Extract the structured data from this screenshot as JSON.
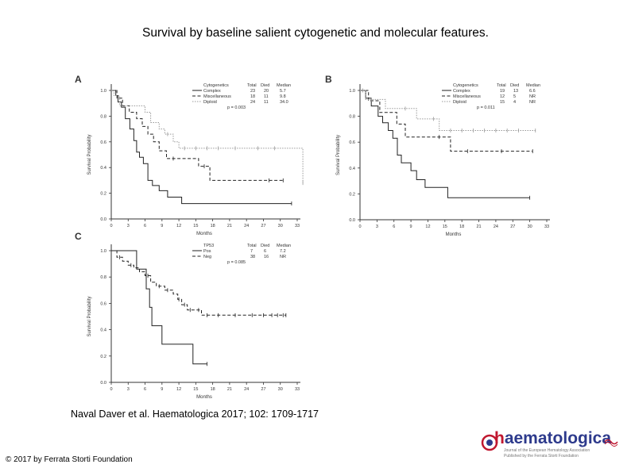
{
  "title": "Survival by baseline salient cytogenetic and molecular features.",
  "citation": "Naval Daver et al. Haematologica 2017; 102: 1709-1717",
  "copyright": "© 2017 by Ferrata Storti Foundation",
  "logo": {
    "text_h": "h",
    "text_rest": "aematologica",
    "line1": "Journal of the European Hematology Association",
    "line2": "Published by the Ferrata Storti Foundation"
  },
  "chart_data": [
    {
      "panel": "A",
      "type": "line",
      "step": true,
      "xlabel": "Months",
      "ylabel": "Survival Probability",
      "xlim": [
        0,
        33
      ],
      "ylim": [
        0,
        1
      ],
      "x_ticks": [
        0,
        3,
        6,
        9,
        12,
        15,
        18,
        21,
        24,
        27,
        30,
        33
      ],
      "y_ticks": [
        "0.0",
        "0.2",
        "0.4",
        "0.6",
        "0.8",
        "1.0"
      ],
      "legend_header": [
        "Cytogenetics",
        "Total",
        "Died",
        "Median"
      ],
      "p_value": "p = 0.003",
      "series": [
        {
          "name": "Complex",
          "total": "23",
          "died": "20",
          "median": "5.7",
          "style": "solid",
          "color": "#222222",
          "points": [
            [
              0,
              1
            ],
            [
              0.8,
              0.96
            ],
            [
              1.2,
              0.91
            ],
            [
              1.8,
              0.87
            ],
            [
              2.5,
              0.78
            ],
            [
              3.3,
              0.7
            ],
            [
              4,
              0.61
            ],
            [
              4.5,
              0.52
            ],
            [
              5,
              0.48
            ],
            [
              5.7,
              0.43
            ],
            [
              6.5,
              0.3
            ],
            [
              7.3,
              0.26
            ],
            [
              8.5,
              0.22
            ],
            [
              10,
              0.17
            ],
            [
              12.5,
              0.12
            ],
            [
              16,
              0.12
            ],
            [
              32,
              0.12
            ]
          ],
          "censor": [
            32
          ]
        },
        {
          "name": "Miscellaneous",
          "total": "18",
          "died": "11",
          "median": "9.8",
          "style": "dashed",
          "color": "#222222",
          "points": [
            [
              0,
              1
            ],
            [
              1,
              0.94
            ],
            [
              2,
              0.88
            ],
            [
              3.2,
              0.83
            ],
            [
              4.5,
              0.78
            ],
            [
              5.5,
              0.72
            ],
            [
              6.5,
              0.66
            ],
            [
              7.5,
              0.6
            ],
            [
              8.5,
              0.53
            ],
            [
              9.8,
              0.47
            ],
            [
              12,
              0.47
            ],
            [
              15.5,
              0.41
            ],
            [
              17.5,
              0.3
            ],
            [
              24,
              0.3
            ],
            [
              30.5,
              0.3
            ]
          ],
          "censor": [
            11,
            16.5,
            28,
            30.5
          ]
        },
        {
          "name": "Diploid",
          "total": "24",
          "died": "11",
          "median": "34.0",
          "style": "dotted",
          "color": "#999999",
          "points": [
            [
              0,
              1
            ],
            [
              0.5,
              0.96
            ],
            [
              1.5,
              0.88
            ],
            [
              4,
              0.88
            ],
            [
              6,
              0.83
            ],
            [
              7,
              0.75
            ],
            [
              8.5,
              0.7
            ],
            [
              9.5,
              0.66
            ],
            [
              11,
              0.6
            ],
            [
              12,
              0.55
            ],
            [
              24,
              0.55
            ],
            [
              33,
              0.55
            ],
            [
              34,
              0.28
            ]
          ],
          "censor": [
            10,
            13,
            15,
            17,
            19,
            22,
            26,
            29,
            34
          ]
        }
      ]
    },
    {
      "panel": "B",
      "type": "line",
      "step": true,
      "xlabel": "Months",
      "ylabel": "Survival Probability",
      "xlim": [
        0,
        33
      ],
      "ylim": [
        0,
        1
      ],
      "x_ticks": [
        0,
        3,
        6,
        9,
        12,
        15,
        18,
        21,
        24,
        27,
        30,
        33
      ],
      "y_ticks": [
        "0.0",
        "0.2",
        "0.4",
        "0.6",
        "0.8",
        "1.0"
      ],
      "legend_header": [
        "Cytogenetics",
        "Total",
        "Died",
        "Median"
      ],
      "p_value": "p = 0.011",
      "series": [
        {
          "name": "Complex",
          "total": "19",
          "died": "13",
          "median": "6.6",
          "style": "solid",
          "color": "#222222",
          "points": [
            [
              0,
              1
            ],
            [
              1,
              0.94
            ],
            [
              2,
              0.88
            ],
            [
              3.2,
              0.8
            ],
            [
              4,
              0.75
            ],
            [
              5,
              0.69
            ],
            [
              5.8,
              0.63
            ],
            [
              6.6,
              0.5
            ],
            [
              7.3,
              0.44
            ],
            [
              9,
              0.38
            ],
            [
              10,
              0.31
            ],
            [
              11.5,
              0.25
            ],
            [
              13,
              0.25
            ],
            [
              15.5,
              0.17
            ],
            [
              30,
              0.17
            ]
          ],
          "censor": [
            30
          ]
        },
        {
          "name": "Miscellaneous",
          "total": "12",
          "died": "5",
          "median": "NR",
          "style": "dashed",
          "color": "#222222",
          "points": [
            [
              0,
              1
            ],
            [
              1.5,
              0.92
            ],
            [
              3.5,
              0.83
            ],
            [
              6.5,
              0.74
            ],
            [
              8,
              0.64
            ],
            [
              15.5,
              0.64
            ],
            [
              16,
              0.53
            ],
            [
              30.5,
              0.53
            ]
          ],
          "censor": [
            14,
            19,
            25,
            30.5
          ]
        },
        {
          "name": "Diploid",
          "total": "15",
          "died": "4",
          "median": "NR",
          "style": "dotted",
          "color": "#999999",
          "points": [
            [
              0,
              1
            ],
            [
              1,
              0.93
            ],
            [
              4.5,
              0.86
            ],
            [
              9,
              0.86
            ],
            [
              10,
              0.78
            ],
            [
              14,
              0.69
            ],
            [
              31,
              0.69
            ]
          ],
          "censor": [
            0.5,
            2,
            8,
            13,
            16,
            18,
            20,
            22,
            24,
            26,
            28,
            31
          ]
        }
      ]
    },
    {
      "panel": "C",
      "type": "line",
      "step": true,
      "xlabel": "Months",
      "ylabel": "Survival Probability",
      "xlim": [
        0,
        33
      ],
      "ylim": [
        0,
        1
      ],
      "x_ticks": [
        0,
        3,
        6,
        9,
        12,
        15,
        18,
        21,
        24,
        27,
        30,
        33
      ],
      "y_ticks": [
        "0.0",
        "0.2",
        "0.4",
        "0.6",
        "0.8",
        "1.0"
      ],
      "legend_header": [
        "TP53",
        "Total",
        "Died",
        "Median"
      ],
      "p_value": "p = 0.085",
      "series": [
        {
          "name": "Pos",
          "total": "7",
          "died": "6",
          "median": "7.2",
          "style": "solid",
          "color": "#222222",
          "points": [
            [
              0,
              1
            ],
            [
              4.5,
              0.86
            ],
            [
              6.2,
              0.71
            ],
            [
              6.8,
              0.57
            ],
            [
              7.2,
              0.43
            ],
            [
              9,
              0.29
            ],
            [
              14.5,
              0.14
            ],
            [
              17,
              0.14
            ]
          ],
          "censor": [
            17
          ]
        },
        {
          "name": "Neg",
          "total": "38",
          "died": "16",
          "median": "NR",
          "style": "dashed",
          "color": "#222222",
          "points": [
            [
              0,
              1
            ],
            [
              1,
              0.95
            ],
            [
              2,
              0.92
            ],
            [
              3,
              0.89
            ],
            [
              4,
              0.87
            ],
            [
              5,
              0.84
            ],
            [
              6,
              0.81
            ],
            [
              7,
              0.76
            ],
            [
              8,
              0.73
            ],
            [
              9.5,
              0.7
            ],
            [
              11,
              0.67
            ],
            [
              11.8,
              0.63
            ],
            [
              12.5,
              0.59
            ],
            [
              13.5,
              0.55
            ],
            [
              15,
              0.55
            ],
            [
              16,
              0.51
            ],
            [
              31,
              0.51
            ]
          ],
          "censor": [
            1.5,
            3.5,
            6.5,
            8.5,
            10,
            12,
            13,
            14,
            15.5,
            17,
            19,
            22,
            25,
            27,
            28.5,
            29.5,
            30.5,
            31
          ]
        }
      ]
    }
  ]
}
